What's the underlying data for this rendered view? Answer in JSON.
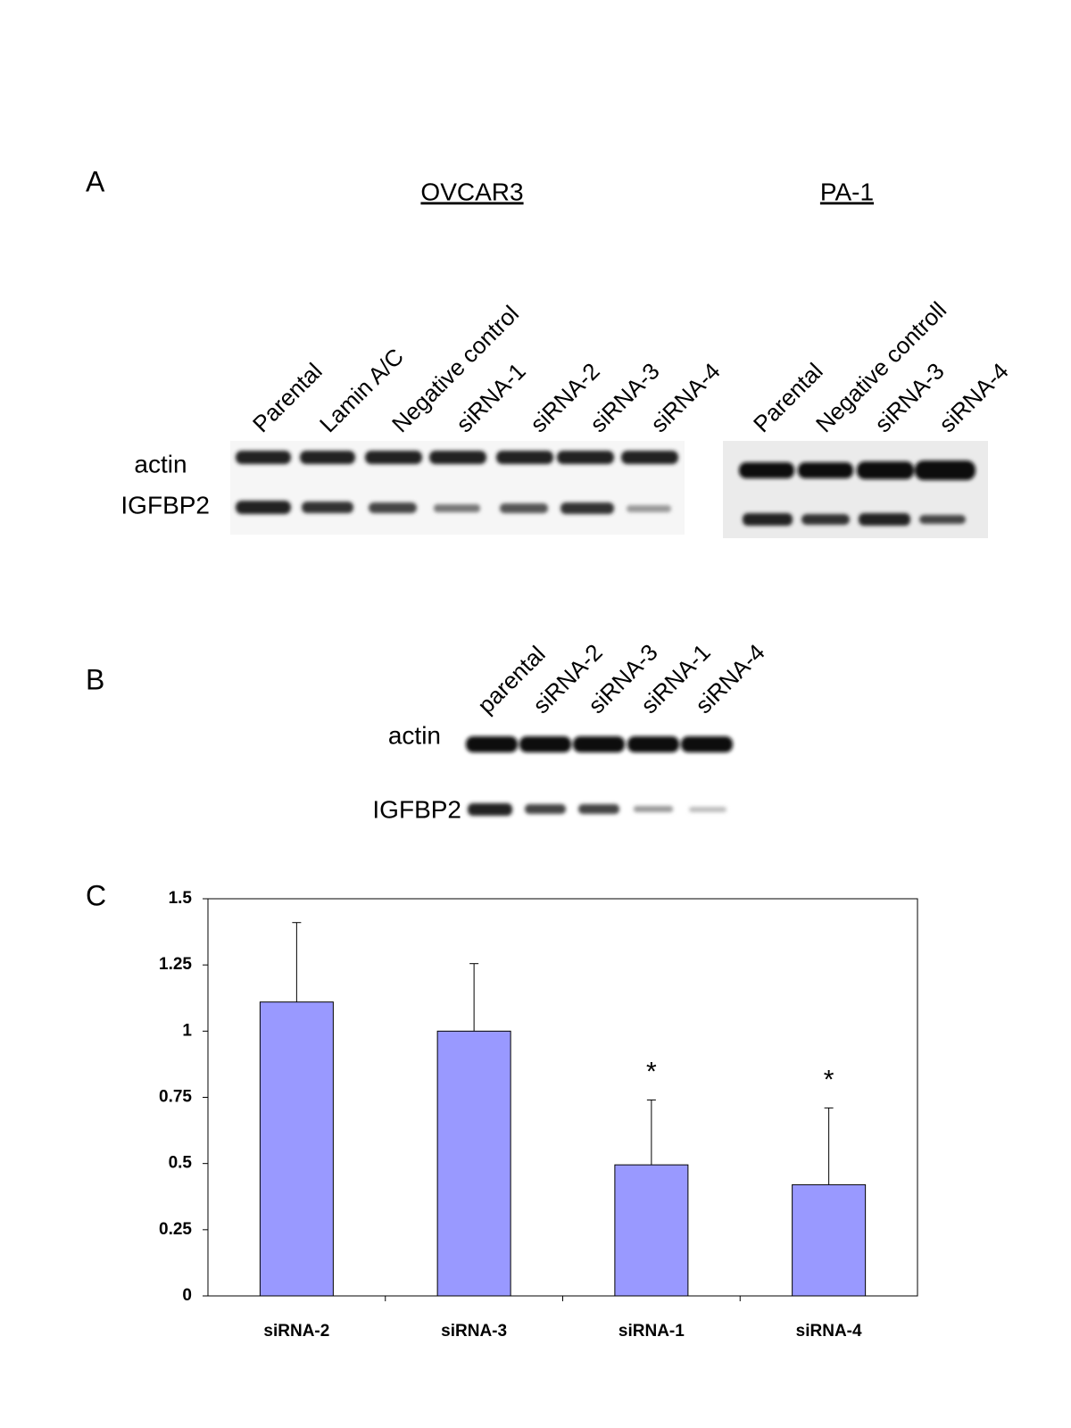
{
  "panel_a": {
    "letter": "A",
    "groups": [
      {
        "title": "OVCAR3",
        "lanes": [
          "Parental",
          "Lamin A/C",
          "Negative control",
          "siRNA-1",
          "siRNA-2",
          "siRNA-3",
          "siRNA-4"
        ]
      },
      {
        "title": "PA-1",
        "lanes": [
          "Parental",
          "Negative controll",
          "siRNA-3",
          "siRNA-4"
        ]
      }
    ],
    "rows": [
      "actin",
      "IGFBP2"
    ]
  },
  "panel_b": {
    "letter": "B",
    "lanes": [
      "parental",
      "siRNA-2",
      "siRNA-3",
      "siRNA-1",
      "siRNA-4"
    ],
    "rows": [
      "actin",
      "IGFBP2"
    ]
  },
  "panel_c": {
    "letter": "C"
  },
  "chart_data": {
    "type": "bar",
    "categories": [
      "siRNA-2",
      "siRNA-3",
      "siRNA-1",
      "siRNA-4"
    ],
    "values": [
      1.11,
      1.0,
      0.495,
      0.42
    ],
    "errors": [
      0.3,
      0.255,
      0.245,
      0.29
    ],
    "significance": [
      null,
      null,
      "*",
      "*"
    ],
    "color": "#9999ff",
    "ylim": [
      0,
      1.5
    ],
    "yticks": [
      0,
      0.25,
      0.5,
      0.75,
      1,
      1.25,
      1.5
    ]
  }
}
